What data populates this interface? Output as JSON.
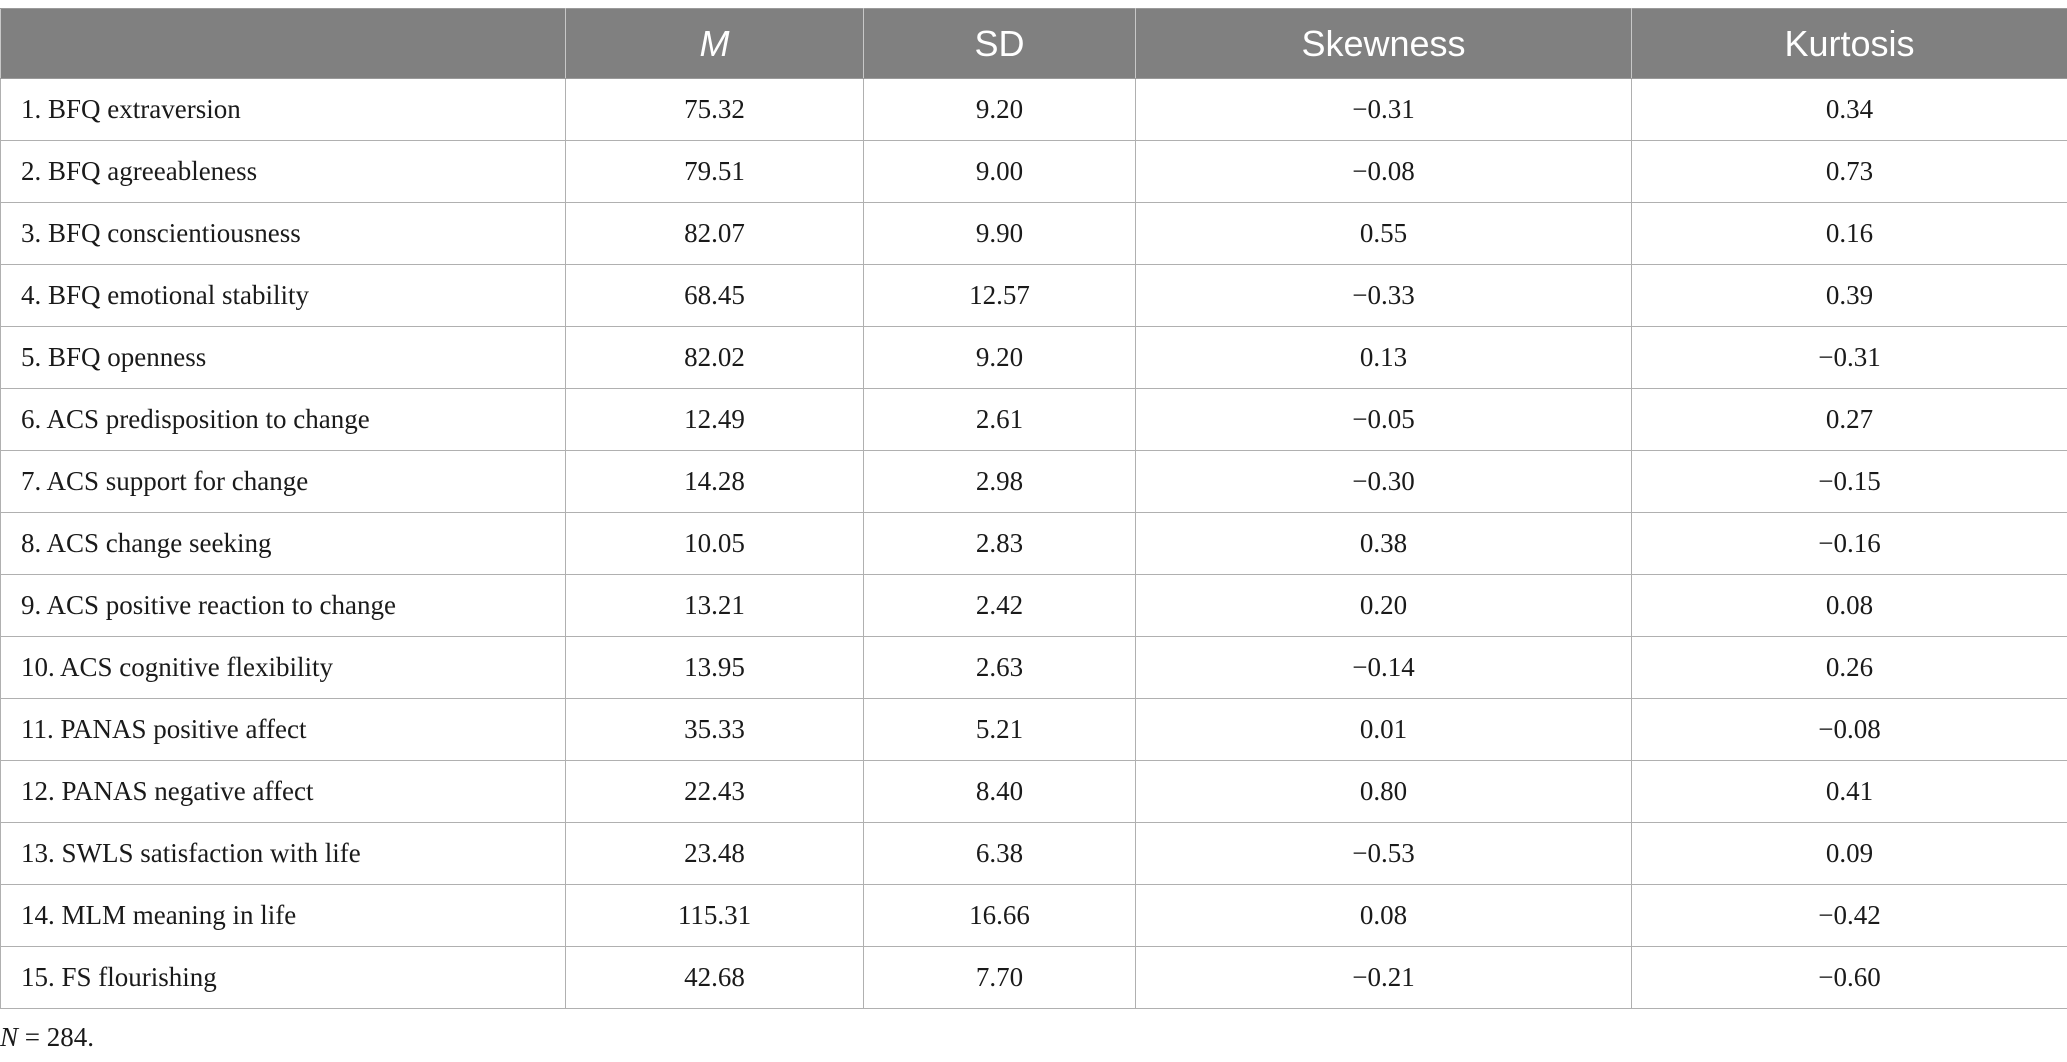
{
  "table": {
    "headers": [
      "",
      "M",
      "SD",
      "Skewness",
      "Kurtosis"
    ],
    "rows": [
      [
        "1. BFQ extraversion",
        "75.32",
        "9.20",
        "−0.31",
        "0.34"
      ],
      [
        "2. BFQ agreeableness",
        "79.51",
        "9.00",
        "−0.08",
        "0.73"
      ],
      [
        "3. BFQ conscientiousness",
        "82.07",
        "9.90",
        "0.55",
        "0.16"
      ],
      [
        "4. BFQ emotional stability",
        "68.45",
        "12.57",
        "−0.33",
        "0.39"
      ],
      [
        "5. BFQ openness",
        "82.02",
        "9.20",
        "0.13",
        "−0.31"
      ],
      [
        "6. ACS predisposition to change",
        "12.49",
        "2.61",
        "−0.05",
        "0.27"
      ],
      [
        "7. ACS support for change",
        "14.28",
        "2.98",
        "−0.30",
        "−0.15"
      ],
      [
        "8. ACS change seeking",
        "10.05",
        "2.83",
        "0.38",
        "−0.16"
      ],
      [
        "9. ACS positive reaction to change",
        "13.21",
        "2.42",
        "0.20",
        "0.08"
      ],
      [
        "10. ACS cognitive flexibility",
        "13.95",
        "2.63",
        "−0.14",
        "0.26"
      ],
      [
        "11. PANAS positive affect",
        "35.33",
        "5.21",
        "0.01",
        "−0.08"
      ],
      [
        "12. PANAS negative affect",
        "22.43",
        "8.40",
        "0.80",
        "0.41"
      ],
      [
        "13. SWLS satisfaction with life",
        "23.48",
        "6.38",
        "−0.53",
        "0.09"
      ],
      [
        "14. MLM meaning in life",
        "115.31",
        "16.66",
        "0.08",
        "−0.42"
      ],
      [
        "15. FS flourishing",
        "42.68",
        "7.70",
        "−0.21",
        "−0.60"
      ]
    ]
  },
  "note": {
    "symbol": "N",
    "text": " = 284."
  },
  "colors": {
    "header_bg": "#808080",
    "header_text": "#ffffff",
    "grid": "#b0b0b0"
  }
}
